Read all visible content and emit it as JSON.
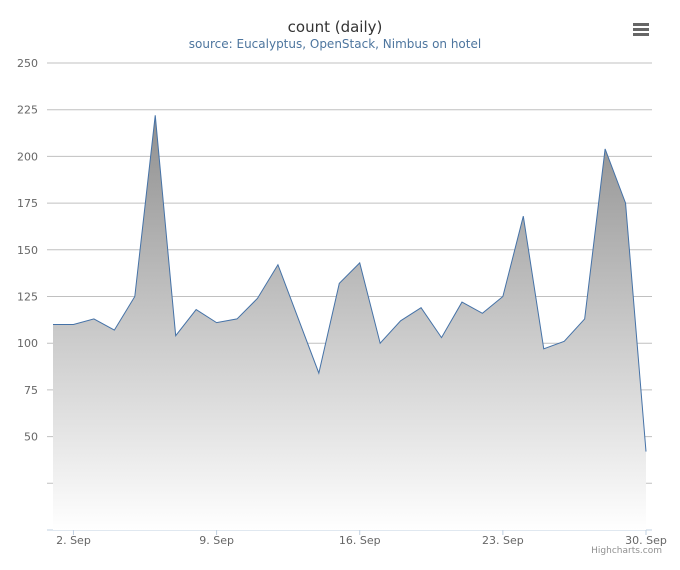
{
  "chart_data": {
    "type": "area",
    "title": "count (daily)",
    "subtitle": "source: Eucalyptus, OpenStack, Nimbus on hotel",
    "xlabel": "",
    "ylabel": "",
    "x_start": "2014-09-01",
    "x_step_days": 1,
    "x_tick_labels": [
      "2. Sep",
      "9. Sep",
      "16. Sep",
      "23. Sep",
      "30. Sep"
    ],
    "x_tick_days": [
      1,
      8,
      15,
      22,
      29
    ],
    "ylim": [
      0,
      250
    ],
    "yticks": [
      50,
      75,
      100,
      125,
      150,
      175,
      200,
      225,
      250
    ],
    "grid": true,
    "legend": false,
    "series": [
      {
        "values": [
          110,
          110,
          113,
          107,
          125,
          222,
          104,
          118,
          111,
          113,
          124,
          142,
          113,
          84,
          132,
          143,
          100,
          112,
          119,
          103,
          122,
          116,
          125,
          168,
          97,
          101,
          113,
          204,
          175,
          42
        ]
      }
    ],
    "colors": {
      "line": "#4572a7",
      "fill_top": "#8f8f8f",
      "fill_bottom": "#ffffff",
      "grid": "#c0c0c0",
      "axis": "#c0d0e0"
    }
  },
  "credits": "Highcharts.com",
  "menu": {
    "icon": "hamburger-menu-icon"
  }
}
